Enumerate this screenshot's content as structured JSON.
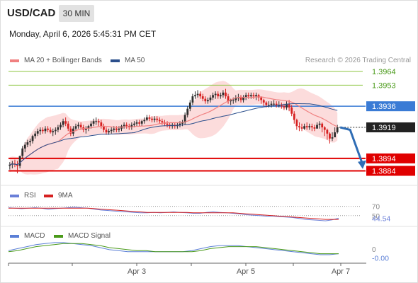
{
  "header": {
    "symbol": "USD/CAD",
    "timeframe": "30 MIN",
    "datetime": "Monday, April 6, 2026 5:45:31 PM CET"
  },
  "legend": {
    "ma20": "MA 20 + Bollinger Bands",
    "ma50": "MA 50",
    "watermark": "Research © 2026 Trading Central",
    "rsi": "RSI",
    "rsi_ma": "9MA",
    "macd": "MACD",
    "macd_signal": "MACD Signal"
  },
  "colors": {
    "up": "#2e2e2e",
    "down": "#d62020",
    "resistance": "#8cc63f",
    "pivot": "#3a7bd5",
    "support": "#e00000",
    "ma20": "#f08080",
    "band": "#fbd6d6",
    "ma50": "#2b4f8c",
    "rsi": "#6a7fd8",
    "rsi_ma": "#d62020",
    "macd": "#5b7fd6",
    "macd_signal": "#4a9a1a"
  },
  "chart_data": [
    {
      "type": "candlestick",
      "title": "USD/CAD 30 MIN",
      "ylim": [
        1.3878,
        1.3968
      ],
      "levels": [
        {
          "label": "1.3964",
          "value": 1.3964,
          "kind": "resistance"
        },
        {
          "label": "1.3953",
          "value": 1.3953,
          "kind": "resistance"
        },
        {
          "label": "1.3936",
          "value": 1.3936,
          "kind": "pivot"
        },
        {
          "label": "1.3894",
          "value": 1.3894,
          "kind": "support"
        },
        {
          "label": "1.3884",
          "value": 1.3884,
          "kind": "support"
        }
      ],
      "last_price": {
        "label": "1.3919",
        "value": 1.3919
      },
      "x_ticks": [
        "Apr 3",
        "Apr 5",
        "Apr 7"
      ],
      "ohlc_open": [
        1.3888,
        1.3889,
        1.389,
        1.3889,
        1.3888,
        1.3896,
        1.3902,
        1.3905,
        1.3907,
        1.3908,
        1.3912,
        1.3914,
        1.3916,
        1.3917,
        1.3916,
        1.3918,
        1.3917,
        1.3915,
        1.3916,
        1.3917,
        1.3919,
        1.3921,
        1.3924,
        1.3922,
        1.3918,
        1.3914,
        1.3918,
        1.392,
        1.3921,
        1.3919,
        1.3917,
        1.3918,
        1.392,
        1.3922,
        1.3924,
        1.3924,
        1.3923,
        1.392,
        1.3917,
        1.3915,
        1.3916,
        1.3917,
        1.3918,
        1.3917,
        1.3918,
        1.392,
        1.3921,
        1.392,
        1.3919,
        1.3921,
        1.3922,
        1.3923,
        1.3922,
        1.3924,
        1.3925,
        1.3927,
        1.3926,
        1.3925,
        1.3926,
        1.3925,
        1.3924,
        1.3923,
        1.3922,
        1.3921,
        1.392,
        1.3921,
        1.392,
        1.3921,
        1.3922,
        1.3923,
        1.3929,
        1.3934,
        1.3939,
        1.3944,
        1.3945,
        1.3946,
        1.3944,
        1.3942,
        1.394,
        1.3941,
        1.3943,
        1.3945,
        1.3946,
        1.3944,
        1.3945,
        1.3947,
        1.3944,
        1.394,
        1.3941,
        1.3941,
        1.3943,
        1.3943,
        1.3941,
        1.3943,
        1.3945,
        1.3944,
        1.3945,
        1.3944,
        1.3945,
        1.3943,
        1.3941,
        1.3939,
        1.3937,
        1.3937,
        1.3938,
        1.3938,
        1.3937,
        1.3937,
        1.3936,
        1.3935,
        1.3938,
        1.3935,
        1.393,
        1.3925,
        1.392,
        1.3919,
        1.3918,
        1.392,
        1.3919,
        1.392,
        1.3919,
        1.3918,
        1.3921,
        1.3922,
        1.3919,
        1.3917,
        1.3914,
        1.391,
        1.3911,
        1.3915
      ],
      "ohlc_high": [
        1.3891,
        1.3892,
        1.3893,
        1.3892,
        1.3896,
        1.3904,
        1.3907,
        1.3909,
        1.391,
        1.3913,
        1.3916,
        1.3918,
        1.3919,
        1.3919,
        1.392,
        1.392,
        1.3919,
        1.3918,
        1.3919,
        1.3921,
        1.3923,
        1.3926,
        1.3927,
        1.3924,
        1.392,
        1.392,
        1.3922,
        1.3923,
        1.3923,
        1.3921,
        1.392,
        1.3921,
        1.3924,
        1.3926,
        1.3927,
        1.3926,
        1.3925,
        1.3922,
        1.3919,
        1.3918,
        1.3919,
        1.392,
        1.392,
        1.392,
        1.3921,
        1.3923,
        1.3923,
        1.3922,
        1.3923,
        1.3924,
        1.3925,
        1.3925,
        1.3925,
        1.3927,
        1.3929,
        1.3929,
        1.3928,
        1.3928,
        1.3928,
        1.3927,
        1.3926,
        1.3925,
        1.3924,
        1.3923,
        1.3923,
        1.3923,
        1.3923,
        1.3924,
        1.3925,
        1.3931,
        1.3936,
        1.3941,
        1.3946,
        1.3948,
        1.3949,
        1.3948,
        1.3946,
        1.3944,
        1.3943,
        1.3945,
        1.3947,
        1.3948,
        1.3948,
        1.3947,
        1.3949,
        1.395,
        1.3946,
        1.3942,
        1.3943,
        1.3945,
        1.3946,
        1.3945,
        1.3945,
        1.3947,
        1.3947,
        1.3947,
        1.3947,
        1.3947,
        1.3946,
        1.3944,
        1.3942,
        1.394,
        1.394,
        1.394,
        1.3941,
        1.394,
        1.394,
        1.3939,
        1.3938,
        1.394,
        1.3941,
        1.3937,
        1.3932,
        1.3926,
        1.3923,
        1.3922,
        1.3922,
        1.3923,
        1.3922,
        1.3922,
        1.3921,
        1.3923,
        1.3924,
        1.3923,
        1.392,
        1.3918,
        1.3915,
        1.3915,
        1.3919,
        1.3921
      ],
      "ohlc_low": [
        1.3885,
        1.3886,
        1.3887,
        1.3882,
        1.3886,
        1.3894,
        1.3899,
        1.3903,
        1.3904,
        1.3906,
        1.391,
        1.3912,
        1.3913,
        1.3914,
        1.3914,
        1.3915,
        1.3914,
        1.3912,
        1.3913,
        1.3915,
        1.3917,
        1.3919,
        1.392,
        1.3916,
        1.3912,
        1.3912,
        1.3916,
        1.3918,
        1.3917,
        1.3915,
        1.3914,
        1.3916,
        1.3918,
        1.392,
        1.3921,
        1.392,
        1.3918,
        1.3915,
        1.3913,
        1.3913,
        1.3914,
        1.3915,
        1.3915,
        1.3915,
        1.3916,
        1.3918,
        1.3918,
        1.3917,
        1.3917,
        1.3919,
        1.392,
        1.392,
        1.392,
        1.3922,
        1.3924,
        1.3924,
        1.3923,
        1.3923,
        1.3923,
        1.3922,
        1.3921,
        1.392,
        1.3919,
        1.3918,
        1.3918,
        1.3918,
        1.3918,
        1.3919,
        1.392,
        1.3921,
        1.3927,
        1.3932,
        1.3937,
        1.3942,
        1.3943,
        1.3942,
        1.394,
        1.3938,
        1.3938,
        1.3939,
        1.3941,
        1.3942,
        1.3942,
        1.3942,
        1.3943,
        1.3942,
        1.3938,
        1.3937,
        1.3938,
        1.3939,
        1.394,
        1.3939,
        1.3939,
        1.3941,
        1.3942,
        1.3942,
        1.3942,
        1.3941,
        1.394,
        1.3938,
        1.3936,
        1.3935,
        1.3935,
        1.3935,
        1.3936,
        1.3935,
        1.3935,
        1.3934,
        1.3933,
        1.3933,
        1.3932,
        1.3928,
        1.3922,
        1.3917,
        1.3916,
        1.3916,
        1.3917,
        1.3917,
        1.3917,
        1.3916,
        1.3916,
        1.3919,
        1.3918,
        1.3915,
        1.3912,
        1.3909,
        1.3906,
        1.3908,
        1.3913,
        1.3914
      ],
      "ohlc_close": [
        1.3889,
        1.389,
        1.3889,
        1.3888,
        1.3896,
        1.3902,
        1.3905,
        1.3907,
        1.3908,
        1.3912,
        1.3914,
        1.3916,
        1.3917,
        1.3916,
        1.3918,
        1.3917,
        1.3915,
        1.3916,
        1.3917,
        1.3919,
        1.3921,
        1.3924,
        1.3922,
        1.3918,
        1.3914,
        1.3918,
        1.392,
        1.3921,
        1.3919,
        1.3917,
        1.3918,
        1.392,
        1.3922,
        1.3924,
        1.3924,
        1.3923,
        1.392,
        1.3917,
        1.3915,
        1.3916,
        1.3917,
        1.3918,
        1.3917,
        1.3918,
        1.392,
        1.3921,
        1.392,
        1.3919,
        1.3921,
        1.3922,
        1.3923,
        1.3922,
        1.3924,
        1.3925,
        1.3927,
        1.3926,
        1.3925,
        1.3926,
        1.3925,
        1.3924,
        1.3923,
        1.3922,
        1.3921,
        1.392,
        1.3921,
        1.392,
        1.3921,
        1.3922,
        1.3923,
        1.3929,
        1.3934,
        1.3939,
        1.3944,
        1.3945,
        1.3946,
        1.3944,
        1.3942,
        1.394,
        1.3941,
        1.3943,
        1.3945,
        1.3946,
        1.3944,
        1.3945,
        1.3947,
        1.3944,
        1.394,
        1.3941,
        1.3941,
        1.3943,
        1.3943,
        1.3941,
        1.3943,
        1.3945,
        1.3944,
        1.3945,
        1.3944,
        1.3945,
        1.3943,
        1.3941,
        1.3939,
        1.3937,
        1.3937,
        1.3938,
        1.3938,
        1.3937,
        1.3937,
        1.3936,
        1.3935,
        1.3938,
        1.3935,
        1.393,
        1.3925,
        1.392,
        1.3919,
        1.3918,
        1.392,
        1.3919,
        1.392,
        1.3919,
        1.3918,
        1.3921,
        1.3922,
        1.3919,
        1.3917,
        1.3914,
        1.391,
        1.3911,
        1.3915,
        1.3919
      ],
      "projection": [
        1.3919,
        1.3917,
        1.3889
      ]
    },
    {
      "type": "line",
      "title": "RSI",
      "ylim": [
        30,
        80
      ],
      "ticks": [
        {
          "label": "70",
          "value": 70
        },
        {
          "label": "50",
          "value": 50
        }
      ],
      "last_value": "44.54",
      "series": [
        {
          "name": "RSI",
          "values": [
            67,
            66,
            65,
            66,
            67,
            66,
            64,
            65,
            66,
            67,
            68,
            67,
            66,
            64,
            62,
            61,
            60,
            59,
            58,
            57,
            56,
            56,
            57,
            56,
            57,
            58,
            57,
            56,
            55,
            55,
            57,
            58,
            57,
            56,
            55,
            54,
            52,
            51,
            50,
            49,
            49,
            48,
            47,
            46,
            44,
            42,
            41,
            40,
            39,
            41,
            44.54
          ]
        },
        {
          "name": "9MA",
          "values": [
            66,
            66,
            66,
            66,
            66,
            66,
            66,
            66,
            66,
            66,
            66,
            66,
            66,
            65,
            64,
            63,
            62,
            61,
            60,
            59,
            58,
            57,
            57,
            57,
            57,
            57,
            57,
            57,
            56,
            56,
            56,
            56,
            56,
            56,
            56,
            55,
            54,
            53,
            52,
            51,
            50,
            49,
            48,
            47,
            46,
            45,
            44,
            43,
            42,
            42,
            42
          ]
        }
      ]
    },
    {
      "type": "line",
      "title": "MACD",
      "ylim": [
        -0.0009,
        0.0012
      ],
      "ticks": [
        {
          "label": "0",
          "value": 0
        }
      ],
      "last_value": "-0.00",
      "series": [
        {
          "name": "MACD",
          "values": [
            0.0002,
            0.0004,
            0.0006,
            0.0008,
            0.0009,
            0.001,
            0.001,
            0.0009,
            0.0008,
            0.0007,
            0.0005,
            0.0003,
            0.0002,
            0.0001,
            0.0001,
            0.0001,
            0.0001,
            0.0001,
            0.0001,
            0.0001,
            0.0002,
            0.0004,
            0.0006,
            0.0007,
            0.0007,
            0.0007,
            0.0006,
            0.0005,
            0.0004,
            0.0003,
            0.0002,
            0.0001,
            0.0,
            -0.0001,
            -0.0002,
            -0.0002,
            -0.0001
          ]
        },
        {
          "name": "MACD Signal",
          "values": [
            0.0001,
            0.0002,
            0.0004,
            0.0006,
            0.0007,
            0.0008,
            0.0009,
            0.0009,
            0.0009,
            0.0008,
            0.0007,
            0.0005,
            0.0004,
            0.0003,
            0.0002,
            0.0002,
            0.0001,
            0.0001,
            0.0001,
            0.0001,
            0.0001,
            0.0002,
            0.0004,
            0.0005,
            0.0006,
            0.0006,
            0.0006,
            0.0006,
            0.0005,
            0.0004,
            0.0003,
            0.0002,
            0.0001,
            0.0,
            -0.0001,
            -0.0001,
            -0.0001
          ]
        }
      ]
    }
  ]
}
